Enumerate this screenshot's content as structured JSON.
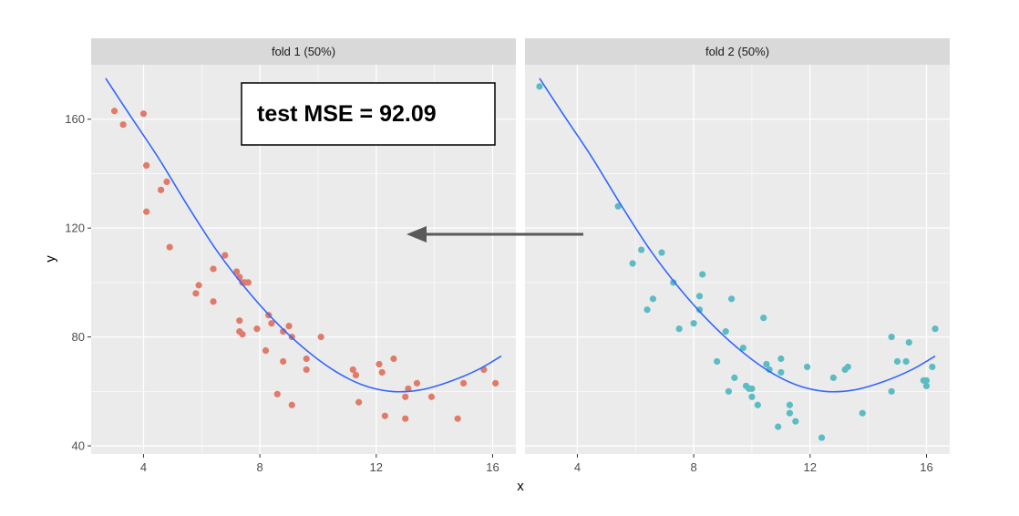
{
  "chart_data": {
    "type": "scatter",
    "xlabel": "x",
    "ylabel": "y",
    "xlim": [
      2.2,
      16.8
    ],
    "ylim": [
      37,
      180
    ],
    "x_ticks": [
      4,
      8,
      12,
      16
    ],
    "y_ticks": [
      40,
      80,
      120,
      160
    ],
    "grid": true,
    "annotation": "test MSE = 92.09",
    "colors": {
      "fold1": "#E07B6A",
      "fold2": "#5BBCC4",
      "fit_line": "#3366FF",
      "arrow": "#595959",
      "panel_bg": "#EBEBEB",
      "strip_bg": "#D9D9D9"
    },
    "fit_curve": {
      "x": [
        2.7,
        3.5,
        4.5,
        5.5,
        6.5,
        7.5,
        8.5,
        9.5,
        10.5,
        11.5,
        12.5,
        13.5,
        14.5,
        15.5,
        16.3
      ],
      "y": [
        175,
        162,
        146,
        128.5,
        112,
        98,
        86,
        76,
        68,
        62.5,
        60,
        60.5,
        63.5,
        68,
        73
      ]
    },
    "panels": [
      {
        "strip": "fold 1 (50%)",
        "series": "fold1",
        "x": [
          3.0,
          3.3,
          4.0,
          4.1,
          4.1,
          4.6,
          4.8,
          4.9,
          5.8,
          5.9,
          6.4,
          6.4,
          6.8,
          7.2,
          7.3,
          7.3,
          7.4,
          7.4,
          7.5,
          7.6,
          7.3,
          7.9,
          8.2,
          8.3,
          8.4,
          8.6,
          8.8,
          8.8,
          9.0,
          9.1,
          9.1,
          9.6,
          9.6,
          10.1,
          11.2,
          11.3,
          11.4,
          12.1,
          12.2,
          12.3,
          12.6,
          13.0,
          13.0,
          13.1,
          13.4,
          13.9,
          14.8,
          15.0,
          15.7,
          16.1
        ],
        "y": [
          163,
          158,
          162,
          143,
          126,
          134,
          137,
          113,
          96,
          99,
          105,
          93,
          110,
          104,
          102,
          82,
          100,
          81,
          100,
          100,
          86,
          83,
          75,
          88,
          85,
          59,
          82,
          71,
          84,
          80,
          55,
          72,
          68,
          80,
          68,
          66,
          56,
          70,
          67,
          51,
          72,
          58,
          50,
          61,
          63,
          58,
          50,
          63,
          68,
          63
        ]
      },
      {
        "strip": "fold 2 (50%)",
        "series": "fold2",
        "x": [
          2.7,
          5.4,
          5.9,
          6.2,
          6.4,
          6.6,
          6.9,
          7.3,
          7.5,
          8.0,
          8.2,
          8.2,
          8.3,
          8.8,
          9.1,
          9.2,
          9.3,
          9.4,
          9.7,
          9.8,
          9.9,
          10.0,
          10.0,
          10.2,
          10.4,
          10.5,
          10.6,
          10.9,
          11.0,
          11.0,
          11.3,
          11.3,
          11.5,
          11.9,
          12.4,
          12.8,
          13.2,
          13.3,
          13.8,
          14.8,
          14.8,
          15.0,
          15.3,
          15.4,
          15.9,
          16.0,
          16.0,
          16.2,
          16.3
        ],
        "y": [
          172,
          128,
          107,
          112,
          90,
          94,
          111,
          100,
          83,
          85,
          95,
          90,
          103,
          71,
          82,
          60,
          94,
          65,
          76,
          62,
          61,
          58,
          61,
          55,
          87,
          70,
          68,
          47,
          67,
          72,
          52,
          55,
          49,
          69,
          43,
          65,
          68,
          69,
          52,
          80,
          60,
          71,
          71,
          78,
          64,
          62,
          64,
          69,
          83
        ]
      }
    ]
  }
}
